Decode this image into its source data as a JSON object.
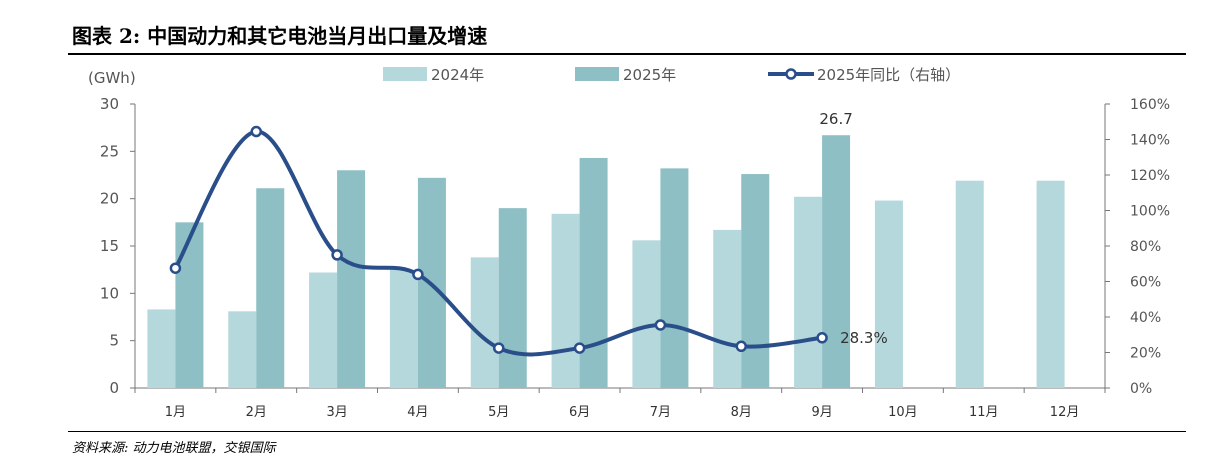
{
  "title": "图表 2: 中国动力和其它电池当月出口量及增速",
  "source": "资料来源: 动力电池联盟，交银国际",
  "colors": {
    "bar_2024": "#b5d8dc",
    "bar_2025": "#8ebfc4",
    "line": "#2a4e8a",
    "axis": "#777777",
    "text": "#555555"
  },
  "chart_data": {
    "type": "bar",
    "title": "图表 2: 中国动力和其它电池当月出口量及增速",
    "ylabel": "(GWh)",
    "xlabel": "",
    "categories": [
      "1月",
      "2月",
      "3月",
      "4月",
      "5月",
      "6月",
      "7月",
      "8月",
      "9月",
      "10月",
      "11月",
      "12月"
    ],
    "ylim": [
      0,
      30
    ],
    "yticks": [
      "0",
      "5",
      "10",
      "15",
      "20",
      "25",
      "30"
    ],
    "y2lim": [
      0,
      160
    ],
    "y2ticks": [
      "0%",
      "20%",
      "40%",
      "60%",
      "80%",
      "100%",
      "120%",
      "140%",
      "160%"
    ],
    "series": [
      {
        "name": "2024年",
        "kind": "bar",
        "values": [
          8.3,
          8.1,
          12.2,
          12.5,
          13.8,
          18.4,
          15.6,
          16.7,
          20.2,
          19.8,
          21.9,
          21.9
        ]
      },
      {
        "name": "2025年",
        "kind": "bar",
        "values": [
          17.5,
          21.1,
          23.0,
          22.2,
          19.0,
          24.3,
          23.2,
          22.6,
          26.7,
          null,
          null,
          null
        ]
      },
      {
        "name": "2025年同比（右轴）",
        "kind": "line",
        "axis": "right",
        "values": [
          67.5,
          144.5,
          75.0,
          64.0,
          22.5,
          22.5,
          35.5,
          23.5,
          28.3,
          null,
          null,
          null
        ]
      }
    ],
    "annotations": [
      {
        "text": "26.7",
        "series": 1,
        "index": 8
      },
      {
        "text": "28.3%",
        "series": 2,
        "index": 8
      }
    ],
    "legend": [
      "2024年",
      "2025年",
      "2025年同比（右轴）"
    ],
    "legend_position": "top-center",
    "grid": false
  }
}
